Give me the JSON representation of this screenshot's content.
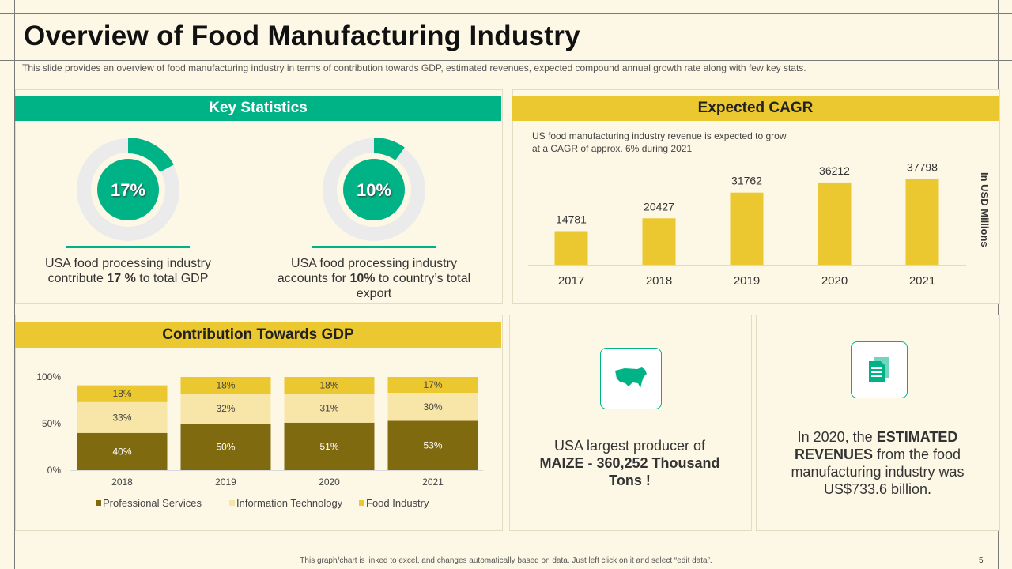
{
  "header": {
    "title": "Overview of Food Manufacturing Industry",
    "subtitle": "This slide provides  an overview  of food manufacturing  industry in terms of contribution towards GDP, estimated revenues,  expected compound  annual growth rate along with few key stats."
  },
  "key_statistics": {
    "heading": "Key Statistics",
    "stats": [
      {
        "value": "17%",
        "percent": 17,
        "pre": "USA food processing industry contribute ",
        "bold": "17 %",
        "post": " to total GDP"
      },
      {
        "value": "10%",
        "percent": 10,
        "pre": "USA food processing industry accounts for ",
        "bold": "10%",
        "post": " to country’s total export"
      }
    ]
  },
  "expected_cagr": {
    "heading": "Expected CAGR",
    "note": "US food manufacturing  industry revenue  is expected to grow at a CAGR of approx. 6% during 2021",
    "unit_label": "In USD Millions"
  },
  "gdp": {
    "heading": "Contribution Towards GDP"
  },
  "info_cards": {
    "maize": {
      "line1": "USA largest producer of",
      "bold": "MAIZE - 360,252 Thousand Tons !",
      "icon": "usa-map-icon"
    },
    "revenue": {
      "pre": "In 2020, the ",
      "bold": "ESTIMATED REVENUES",
      "post": " from the food manufacturing industry was US$733.6 billion.",
      "icon": "document-icon"
    }
  },
  "footer": {
    "note": "This graph/chart is linked to excel,  and changes automatically based on data. Just left click on it and select “edit data”.",
    "page": "5"
  },
  "colors": {
    "green": "#00b386",
    "yellow": "#ecc830",
    "olive": "#806a10",
    "light_yellow": "#f8e6a8"
  },
  "chart_data": [
    {
      "type": "bar",
      "title": "Expected CAGR",
      "categories": [
        "2017",
        "2018",
        "2019",
        "2020",
        "2021"
      ],
      "values": [
        14781,
        20427,
        31762,
        36212,
        37798
      ],
      "ylabel": "In USD Millions",
      "ylim": [
        0,
        40000
      ]
    },
    {
      "type": "bar",
      "stacked": true,
      "title": "Contribution Towards GDP",
      "categories": [
        "2018",
        "2019",
        "2020",
        "2021"
      ],
      "series": [
        {
          "name": "Professional Services",
          "values": [
            40,
            50,
            51,
            53
          ],
          "color": "#806a10"
        },
        {
          "name": "Information Technology",
          "values": [
            33,
            32,
            31,
            30
          ],
          "color": "#f8e6a8"
        },
        {
          "name": "Food Industry",
          "values": [
            18,
            18,
            18,
            17
          ],
          "color": "#ecc830"
        }
      ],
      "yticks": [
        "0%",
        "50%",
        "100%"
      ],
      "ylim": [
        0,
        100
      ],
      "legend": "bottom"
    }
  ]
}
